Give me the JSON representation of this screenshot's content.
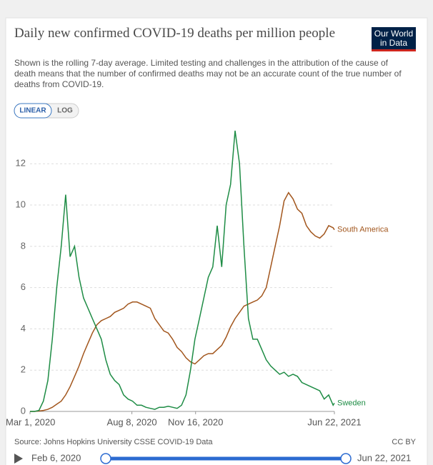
{
  "chart_data": {
    "type": "line",
    "title": "Daily new confirmed COVID-19 deaths per million people",
    "subtitle": "Shown is the rolling 7-day average. Limited testing and challenges in the attribution of the cause of death means that the number of confirmed deaths may not be an accurate count of the true number of deaths from COVID-19.",
    "logo": [
      "Our World",
      "in Data"
    ],
    "scale_buttons": [
      "LINEAR",
      "LOG"
    ],
    "source": "Source: Johns Hopkins University CSSE COVID-19 Data",
    "license": "CC BY",
    "x": [
      "2020-03-01",
      "2020-03-08",
      "2020-03-15",
      "2020-03-22",
      "2020-03-29",
      "2020-04-05",
      "2020-04-12",
      "2020-04-19",
      "2020-04-26",
      "2020-05-03",
      "2020-05-10",
      "2020-05-17",
      "2020-05-24",
      "2020-05-31",
      "2020-06-07",
      "2020-06-14",
      "2020-06-21",
      "2020-06-28",
      "2020-07-05",
      "2020-07-12",
      "2020-07-19",
      "2020-07-26",
      "2020-08-02",
      "2020-08-09",
      "2020-08-16",
      "2020-08-23",
      "2020-08-30",
      "2020-09-06",
      "2020-09-13",
      "2020-09-20",
      "2020-09-27",
      "2020-10-04",
      "2020-10-11",
      "2020-10-18",
      "2020-10-25",
      "2020-11-01",
      "2020-11-08",
      "2020-11-15",
      "2020-11-22",
      "2020-11-29",
      "2020-12-06",
      "2020-12-13",
      "2020-12-20",
      "2020-12-27",
      "2021-01-03",
      "2021-01-10",
      "2021-01-17",
      "2021-01-24",
      "2021-01-31",
      "2021-02-07",
      "2021-02-14",
      "2021-02-21",
      "2021-02-28",
      "2021-03-07",
      "2021-03-14",
      "2021-03-21",
      "2021-03-28",
      "2021-04-04",
      "2021-04-11",
      "2021-04-18",
      "2021-04-25",
      "2021-05-02",
      "2021-05-09",
      "2021-05-16",
      "2021-05-23",
      "2021-05-30",
      "2021-06-06",
      "2021-06-13",
      "2021-06-20",
      "2021-06-22"
    ],
    "series": [
      {
        "name": "South America",
        "color": "#a2561d",
        "values": [
          0,
          0,
          0.02,
          0.05,
          0.1,
          0.2,
          0.35,
          0.5,
          0.8,
          1.2,
          1.7,
          2.2,
          2.8,
          3.3,
          3.8,
          4.2,
          4.4,
          4.5,
          4.6,
          4.8,
          4.9,
          5.0,
          5.2,
          5.3,
          5.3,
          5.2,
          5.1,
          5.0,
          4.5,
          4.2,
          3.9,
          3.8,
          3.5,
          3.1,
          2.9,
          2.6,
          2.4,
          2.3,
          2.5,
          2.7,
          2.8,
          2.8,
          3.0,
          3.2,
          3.6,
          4.1,
          4.5,
          4.8,
          5.1,
          5.2,
          5.3,
          5.4,
          5.6,
          6.0,
          7.0,
          8.0,
          9.0,
          10.2,
          10.6,
          10.3,
          9.8,
          9.6,
          9.0,
          8.7,
          8.5,
          8.4,
          8.6,
          9.0,
          8.9,
          8.8
        ]
      },
      {
        "name": "Sweden",
        "color": "#1e8c45",
        "values": [
          0,
          0,
          0.05,
          0.5,
          1.5,
          3.5,
          6,
          8,
          10.5,
          7.5,
          8,
          6.5,
          5.5,
          5,
          4.5,
          4,
          3.5,
          2.5,
          1.8,
          1.5,
          1.3,
          0.8,
          0.6,
          0.5,
          0.3,
          0.3,
          0.2,
          0.15,
          0.1,
          0.2,
          0.2,
          0.25,
          0.2,
          0.15,
          0.3,
          0.8,
          2,
          3.5,
          4.5,
          5.5,
          6.5,
          7,
          9,
          7,
          10,
          11,
          13.6,
          12,
          8,
          4.5,
          3.5,
          3.5,
          3,
          2.5,
          2.2,
          2,
          1.8,
          1.9,
          1.7,
          1.8,
          1.7,
          1.4,
          1.3,
          1.2,
          1.1,
          1.0,
          0.6,
          0.8,
          0.3,
          0.4
        ]
      }
    ],
    "xlim": [
      "2020-03-01",
      "2021-06-22"
    ],
    "xticks": [
      {
        "value": "2020-03-01",
        "label": "Mar 1, 2020"
      },
      {
        "value": "2020-08-08",
        "label": "Aug 8, 2020"
      },
      {
        "value": "2020-11-16",
        "label": "Nov 16, 2020"
      },
      {
        "value": "2021-06-22",
        "label": "Jun 22, 2021"
      }
    ],
    "ylim": [
      0,
      13.6
    ],
    "yticks": [
      0,
      2,
      4,
      6,
      8,
      10,
      12
    ],
    "grid": true,
    "timeline": {
      "start": "Feb 6, 2020",
      "end": "Jun 22, 2021"
    }
  }
}
